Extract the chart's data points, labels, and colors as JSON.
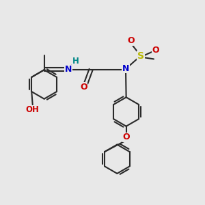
{
  "bg_color": "#e8e8e8",
  "bond_color": "#2a2a2a",
  "bond_width": 1.5,
  "atom_colors": {
    "N": "#0000cc",
    "O": "#cc0000",
    "S": "#b8b800",
    "H_label": "#008888",
    "C": "#2a2a2a"
  },
  "font_size": 8,
  "fig_size": [
    3.0,
    3.0
  ],
  "dpi": 100
}
